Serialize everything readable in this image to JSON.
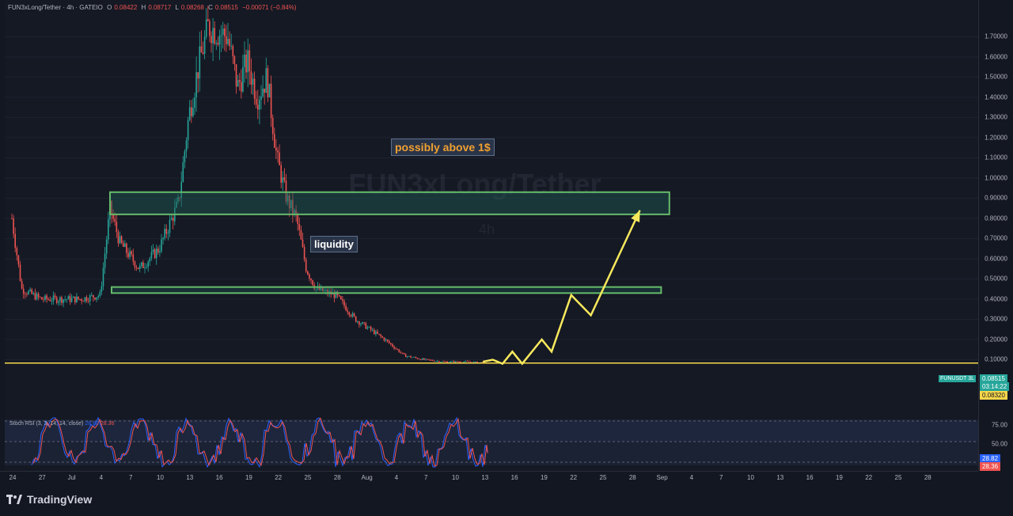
{
  "header": {
    "symbol": "FUN3xLong/Tether · 4h · GATEIO",
    "o_label": "O",
    "o_value": "0.08422",
    "h_label": "H",
    "h_value": "0.08717",
    "l_label": "L",
    "l_value": "0.08268",
    "c_label": "C",
    "c_value": "0.08515",
    "change": "−0.00071 (−0.84%)"
  },
  "annotations": {
    "above": "possibly above 1$",
    "liquidity": "liquidity"
  },
  "price_axis": {
    "ticks": [
      "1.70000",
      "1.60000",
      "1.50000",
      "1.40000",
      "1.30000",
      "1.20000",
      "1.10000",
      "1.00000",
      "0.90000",
      "0.80000",
      "0.70000",
      "0.60000",
      "0.50000",
      "0.40000",
      "0.30000",
      "0.20000",
      "0.10000"
    ],
    "rsi_ticks": [
      "75.00",
      "50.00"
    ],
    "symbol_tag": "FUNUSDT 3L",
    "last_price": "0.08515",
    "countdown": "03:14:22",
    "line_price": "0.08320",
    "rsi_k": "28.82",
    "rsi_d": "28.36"
  },
  "time_axis": {
    "ticks": [
      "24",
      "27",
      "Jul",
      "4",
      "7",
      "10",
      "13",
      "16",
      "19",
      "22",
      "25",
      "28",
      "Aug",
      "4",
      "7",
      "10",
      "13",
      "16",
      "19",
      "22",
      "25",
      "28",
      "Sep",
      "4",
      "7",
      "10",
      "13",
      "16",
      "19",
      "22",
      "25",
      "28"
    ]
  },
  "rsi": {
    "label": "Stoch RSI (3, 3, 14, 14, close)",
    "k_value": "28.82",
    "d_value": "28.36"
  },
  "footer": {
    "brand": "TradingView"
  },
  "colors": {
    "up": "#26a69a",
    "down": "#ef5350",
    "zone_fill": "#1f5c55",
    "zone_stroke": "#66bb6a",
    "projection": "#f7e95c",
    "hline": "#f7d64a",
    "annotation_orange": "#f0a030",
    "rsi_k": "#2962ff",
    "rsi_d": "#ef5350"
  },
  "chart_data": {
    "type": "candlestick",
    "title": "",
    "symbol": "FUN3xLong/Tether",
    "interval": "4h",
    "y_range": [
      0.0,
      1.78
    ],
    "close_path": [
      {
        "x": "Jun 24",
        "y": 0.8
      },
      {
        "x": "Jun 25",
        "y": 0.45
      },
      {
        "x": "Jun 27",
        "y": 0.4
      },
      {
        "x": "Jul 1",
        "y": 0.4
      },
      {
        "x": "Jul 3",
        "y": 0.42
      },
      {
        "x": "Jul 4",
        "y": 0.85
      },
      {
        "x": "Jul 5",
        "y": 0.68
      },
      {
        "x": "Jul 7",
        "y": 0.55
      },
      {
        "x": "Jul 9",
        "y": 0.65
      },
      {
        "x": "Jul 11",
        "y": 0.88
      },
      {
        "x": "Jul 12",
        "y": 1.3
      },
      {
        "x": "Jul 13",
        "y": 1.55
      },
      {
        "x": "Jul 14",
        "y": 1.75
      },
      {
        "x": "Jul 16",
        "y": 1.7
      },
      {
        "x": "Jul 17",
        "y": 1.45
      },
      {
        "x": "Jul 18",
        "y": 1.58
      },
      {
        "x": "Jul 19",
        "y": 1.4
      },
      {
        "x": "Jul 20",
        "y": 1.5
      },
      {
        "x": "Jul 21",
        "y": 1.1
      },
      {
        "x": "Jul 22",
        "y": 0.9
      },
      {
        "x": "Jul 23",
        "y": 0.8
      },
      {
        "x": "Jul 24",
        "y": 0.55
      },
      {
        "x": "Jul 25",
        "y": 0.45
      },
      {
        "x": "Jul 27",
        "y": 0.42
      },
      {
        "x": "Jul 29",
        "y": 0.3
      },
      {
        "x": "Aug 1",
        "y": 0.2
      },
      {
        "x": "Aug 3",
        "y": 0.12
      },
      {
        "x": "Aug 5",
        "y": 0.1
      },
      {
        "x": "Aug 7",
        "y": 0.09
      },
      {
        "x": "Aug 9",
        "y": 0.09
      },
      {
        "x": "Aug 11",
        "y": 0.085
      }
    ],
    "zones": [
      {
        "name": "",
        "from": 0.82,
        "to": 0.93
      },
      {
        "name": "liquidity",
        "from": 0.43,
        "to": 0.46
      }
    ],
    "horizontal_line": 0.0832,
    "projection": [
      {
        "x": "Aug 11",
        "y": 0.09
      },
      {
        "x": "Aug 12",
        "y": 0.1
      },
      {
        "x": "Aug 13",
        "y": 0.08
      },
      {
        "x": "Aug 14",
        "y": 0.14
      },
      {
        "x": "Aug 15",
        "y": 0.08
      },
      {
        "x": "Aug 17",
        "y": 0.2
      },
      {
        "x": "Aug 18",
        "y": 0.14
      },
      {
        "x": "Aug 20",
        "y": 0.42
      },
      {
        "x": "Aug 22",
        "y": 0.32
      },
      {
        "x": "Aug 27",
        "y": 0.84
      }
    ],
    "stoch_rsi": {
      "k": 28.82,
      "d": 28.36,
      "levels": [
        75,
        50
      ]
    }
  }
}
